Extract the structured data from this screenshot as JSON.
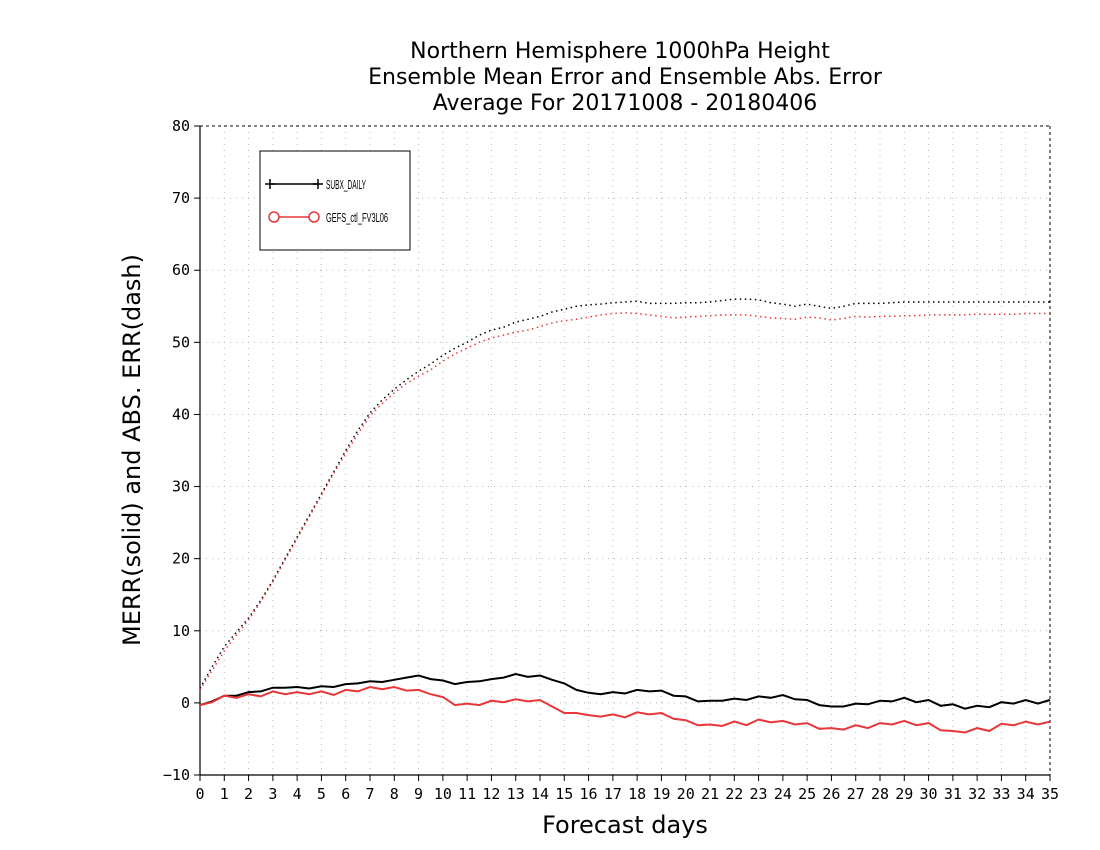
{
  "chart_data": {
    "type": "line",
    "title_lines": [
      "Northern Hemisphere 1000hPa Height",
      "Ensemble Mean Error and Ensemble Abs. Error",
      "Average For 20171008 - 20180406"
    ],
    "xlabel": "Forecast days",
    "ylabel": "MERR(solid) and ABS. ERR(dash)",
    "xlim": [
      0,
      35
    ],
    "ylim": [
      -10,
      80
    ],
    "xticks": [
      0,
      1,
      2,
      3,
      4,
      5,
      6,
      7,
      8,
      9,
      10,
      11,
      12,
      13,
      14,
      15,
      16,
      17,
      18,
      19,
      20,
      21,
      22,
      23,
      24,
      25,
      26,
      27,
      28,
      29,
      30,
      31,
      32,
      33,
      34,
      35
    ],
    "yticks": [
      -10,
      0,
      10,
      20,
      30,
      40,
      50,
      60,
      70,
      80
    ],
    "ytick_labels": [
      "−10",
      "0",
      "10",
      "20",
      "30",
      "40",
      "50",
      "60",
      "70",
      "80"
    ],
    "grid": true,
    "legend_position": "top-left",
    "legend": [
      {
        "label": "SUBX_DAILY",
        "color": "#000000",
        "marker": "plus"
      },
      {
        "label": "GEFS_ctl_FV3L06",
        "color": "#e8363a",
        "marker": "circle"
      }
    ],
    "x": [
      0,
      0.5,
      1,
      1.5,
      2,
      2.5,
      3,
      3.5,
      4,
      4.5,
      5,
      5.5,
      6,
      6.5,
      7,
      7.5,
      8,
      8.5,
      9,
      9.5,
      10,
      10.5,
      11,
      11.5,
      12,
      12.5,
      13,
      13.5,
      14,
      14.5,
      15,
      15.5,
      16,
      16.5,
      17,
      17.5,
      18,
      18.5,
      19,
      19.5,
      20,
      20.5,
      21,
      21.5,
      22,
      22.5,
      23,
      23.5,
      24,
      24.5,
      25,
      25.5,
      26,
      26.5,
      27,
      27.5,
      28,
      28.5,
      29,
      29.5,
      30,
      30.5,
      31,
      31.5,
      32,
      32.5,
      33,
      33.5,
      34,
      34.5,
      35
    ],
    "series": [
      {
        "name": "SUBX_DAILY",
        "kind": "mean_error",
        "style": "solid",
        "color": "#000000",
        "values": [
          -0.3,
          0.2,
          1.0,
          1.0,
          1.5,
          1.6,
          2.1,
          2.1,
          2.2,
          2.0,
          2.3,
          2.2,
          2.6,
          2.7,
          3.0,
          2.9,
          3.2,
          3.5,
          3.8,
          3.3,
          3.1,
          2.6,
          2.9,
          3.0,
          3.3,
          3.5,
          4.0,
          3.6,
          3.8,
          3.2,
          2.7,
          1.8,
          1.4,
          1.2,
          1.5,
          1.3,
          1.8,
          1.6,
          1.7,
          1.0,
          0.9,
          0.2,
          0.3,
          0.3,
          0.6,
          0.4,
          0.9,
          0.7,
          1.1,
          0.5,
          0.4,
          -0.3,
          -0.5,
          -0.5,
          -0.1,
          -0.2,
          0.3,
          0.2,
          0.7,
          0.1,
          0.4,
          -0.4,
          -0.2,
          -0.8,
          -0.4,
          -0.6,
          0.1,
          -0.1,
          0.4,
          -0.1,
          0.4
        ]
      },
      {
        "name": "GEFS_ctl_FV3L06",
        "kind": "mean_error",
        "style": "solid",
        "color": "#e8363a",
        "values": [
          -0.3,
          0.1,
          1.0,
          0.7,
          1.2,
          0.9,
          1.6,
          1.2,
          1.5,
          1.2,
          1.6,
          1.1,
          1.8,
          1.6,
          2.2,
          1.9,
          2.2,
          1.7,
          1.8,
          1.2,
          0.8,
          -0.3,
          -0.1,
          -0.3,
          0.3,
          0.1,
          0.5,
          0.2,
          0.4,
          -0.5,
          -1.4,
          -1.4,
          -1.7,
          -1.9,
          -1.6,
          -2.0,
          -1.3,
          -1.6,
          -1.4,
          -2.2,
          -2.4,
          -3.1,
          -3.0,
          -3.2,
          -2.6,
          -3.1,
          -2.3,
          -2.7,
          -2.5,
          -3.0,
          -2.8,
          -3.6,
          -3.5,
          -3.7,
          -3.1,
          -3.5,
          -2.8,
          -3.0,
          -2.5,
          -3.1,
          -2.8,
          -3.8,
          -3.9,
          -4.1,
          -3.5,
          -3.9,
          -2.9,
          -3.1,
          -2.6,
          -3.0,
          -2.6
        ]
      },
      {
        "name": "SUBX_DAILY",
        "kind": "abs_error",
        "style": "dotted",
        "color": "#000000",
        "values": [
          2.0,
          5.0,
          7.8,
          9.8,
          11.8,
          14.2,
          17.0,
          20.0,
          23.0,
          26.0,
          29.0,
          32.0,
          35.0,
          37.8,
          40.2,
          42.0,
          43.5,
          44.8,
          46.0,
          47.0,
          48.2,
          49.2,
          50.0,
          51.0,
          51.7,
          52.1,
          52.8,
          53.2,
          53.6,
          54.2,
          54.6,
          55.0,
          55.2,
          55.3,
          55.5,
          55.6,
          55.7,
          55.4,
          55.4,
          55.4,
          55.5,
          55.5,
          55.6,
          55.8,
          56.0,
          56.0,
          55.9,
          55.5,
          55.3,
          55.0,
          55.3,
          55.0,
          54.7,
          55.0,
          55.4,
          55.4,
          55.4,
          55.5,
          55.6,
          55.6,
          55.6,
          55.6,
          55.6,
          55.6,
          55.6,
          55.6,
          55.6,
          55.6,
          55.6,
          55.6,
          55.6
        ]
      },
      {
        "name": "GEFS_ctl_FV3L06",
        "kind": "abs_error",
        "style": "dotted",
        "color": "#e8363a",
        "values": [
          1.8,
          4.5,
          7.2,
          9.4,
          11.5,
          14.0,
          16.8,
          19.8,
          22.8,
          25.8,
          28.8,
          31.8,
          34.6,
          37.3,
          39.8,
          41.5,
          43.0,
          44.3,
          45.3,
          46.2,
          47.4,
          48.4,
          49.2,
          50.0,
          50.6,
          51.0,
          51.4,
          51.7,
          52.2,
          52.7,
          53.0,
          53.2,
          53.5,
          53.8,
          54.0,
          54.1,
          54.0,
          53.8,
          53.6,
          53.4,
          53.5,
          53.6,
          53.7,
          53.8,
          53.8,
          53.8,
          53.6,
          53.4,
          53.3,
          53.2,
          53.5,
          53.4,
          53.1,
          53.3,
          53.6,
          53.5,
          53.6,
          53.6,
          53.7,
          53.7,
          53.8,
          53.8,
          53.8,
          53.8,
          53.9,
          53.9,
          53.9,
          53.9,
          54.0,
          54.0,
          54.0
        ]
      }
    ]
  }
}
